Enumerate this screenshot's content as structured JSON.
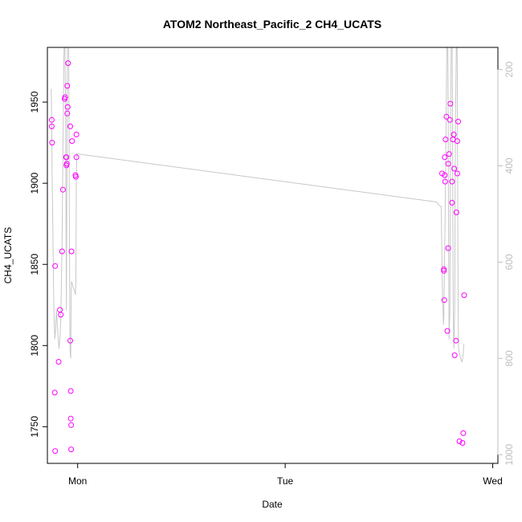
{
  "chart_data": {
    "type": "scatter",
    "title": "ATOM2 Northeast_Pacific_2 CH4_UCATS",
    "xlabel": "Date",
    "ylabel": "CH4_UCATS",
    "x_ticks": [
      "Mon",
      "Tue",
      "Wed"
    ],
    "x_tick_values": [
      0,
      24,
      48
    ],
    "xlim": [
      -3.5,
      48.6
    ],
    "y_ticks": [
      1750,
      1800,
      1850,
      1900,
      1950
    ],
    "ylim": [
      1727.4,
      1983.7
    ],
    "y2_ticks": [
      200,
      400,
      600,
      800,
      1000
    ],
    "y2lim": [
      1018,
      154
    ],
    "y2_reversed": true,
    "point_color": "#ff00ff",
    "line_color": "#c8c8c8",
    "series": [
      {
        "type": "scatter",
        "values": [
          [
            -3.0,
            1939
          ],
          [
            -3.0,
            1935
          ],
          [
            -2.95,
            1925
          ],
          [
            -2.65,
            1771
          ],
          [
            -2.6,
            1735
          ],
          [
            -2.6,
            1849
          ],
          [
            -2.2,
            1790
          ],
          [
            -2.05,
            1822
          ],
          [
            -1.95,
            1819
          ],
          [
            -1.8,
            1858
          ],
          [
            -1.7,
            1896
          ],
          [
            -1.5,
            1952
          ],
          [
            -1.45,
            1953
          ],
          [
            -1.35,
            1916
          ],
          [
            -1.3,
            1911
          ],
          [
            -1.3,
            1916
          ],
          [
            -1.25,
            1912
          ],
          [
            -1.2,
            1960
          ],
          [
            -1.2,
            1943
          ],
          [
            -1.15,
            1947
          ],
          [
            -1.1,
            1974
          ],
          [
            -0.85,
            1935
          ],
          [
            -0.85,
            1803
          ],
          [
            -0.8,
            1772
          ],
          [
            -0.8,
            1755
          ],
          [
            -0.75,
            1751
          ],
          [
            -0.75,
            1736
          ],
          [
            -0.7,
            1858
          ],
          [
            -0.65,
            1926
          ],
          [
            -0.25,
            1905
          ],
          [
            -0.2,
            1904
          ],
          [
            -0.15,
            1916
          ],
          [
            -0.15,
            1930
          ],
          [
            42.15,
            1906
          ],
          [
            42.35,
            1847
          ],
          [
            42.35,
            1846
          ],
          [
            42.4,
            1828
          ],
          [
            42.45,
            1916
          ],
          [
            42.45,
            1905
          ],
          [
            42.5,
            1901
          ],
          [
            42.55,
            1927
          ],
          [
            42.65,
            1941
          ],
          [
            42.75,
            1809
          ],
          [
            42.85,
            1860
          ],
          [
            42.85,
            1912
          ],
          [
            42.95,
            1918
          ],
          [
            43.05,
            1939
          ],
          [
            43.1,
            1949
          ],
          [
            43.3,
            1888
          ],
          [
            43.3,
            1901
          ],
          [
            43.4,
            1927
          ],
          [
            43.5,
            1930
          ],
          [
            43.55,
            1909
          ],
          [
            43.6,
            1794
          ],
          [
            43.75,
            1803
          ],
          [
            43.8,
            1882
          ],
          [
            43.9,
            1906
          ],
          [
            43.9,
            1926
          ],
          [
            44.0,
            1938
          ],
          [
            44.15,
            1741
          ],
          [
            44.5,
            1740
          ],
          [
            44.6,
            1746
          ],
          [
            44.7,
            1831
          ]
        ]
      },
      {
        "type": "line",
        "axis": "right",
        "values": [
          [
            -3.05,
            240
          ],
          [
            -3.0,
            310
          ],
          [
            -2.95,
            420
          ],
          [
            -2.85,
            560
          ],
          [
            -2.75,
            700
          ],
          [
            -2.65,
            760
          ],
          [
            -2.55,
            740
          ],
          [
            -2.45,
            700
          ],
          [
            -2.35,
            730
          ],
          [
            -2.25,
            760
          ],
          [
            -2.15,
            780
          ],
          [
            -2.05,
            760
          ],
          [
            -1.95,
            720
          ],
          [
            -1.8,
            560
          ],
          [
            -1.7,
            360
          ],
          [
            -1.6,
            180
          ],
          [
            -1.5,
            110
          ],
          [
            -1.4,
            260
          ],
          [
            -1.35,
            520
          ],
          [
            -1.3,
            700
          ],
          [
            -1.25,
            460
          ],
          [
            -1.2,
            200
          ],
          [
            -1.15,
            90
          ],
          [
            -1.05,
            110
          ],
          [
            -1.0,
            300
          ],
          [
            -0.95,
            560
          ],
          [
            -0.9,
            760
          ],
          [
            -0.85,
            790
          ],
          [
            -0.8,
            800
          ],
          [
            -0.75,
            660
          ],
          [
            -0.7,
            640
          ],
          [
            -0.55,
            650
          ],
          [
            -0.45,
            655
          ],
          [
            -0.35,
            660
          ],
          [
            -0.25,
            668
          ],
          [
            -0.2,
            640
          ],
          [
            -0.15,
            420
          ],
          [
            -0.1,
            375
          ],
          [
            41.5,
            475
          ],
          [
            41.8,
            482
          ],
          [
            42.05,
            485
          ],
          [
            42.1,
            560
          ],
          [
            42.2,
            670
          ],
          [
            42.3,
            730
          ],
          [
            42.35,
            710
          ],
          [
            42.4,
            650
          ],
          [
            42.5,
            500
          ],
          [
            42.6,
            320
          ],
          [
            42.7,
            150
          ],
          [
            42.8,
            110
          ],
          [
            42.85,
            300
          ],
          [
            42.9,
            560
          ],
          [
            42.95,
            760
          ],
          [
            43.05,
            700
          ],
          [
            43.1,
            400
          ],
          [
            43.2,
            130
          ],
          [
            43.3,
            100
          ],
          [
            43.35,
            300
          ],
          [
            43.4,
            560
          ],
          [
            43.45,
            720
          ],
          [
            43.5,
            780
          ],
          [
            43.6,
            700
          ],
          [
            43.65,
            500
          ],
          [
            43.7,
            300
          ],
          [
            43.8,
            140
          ],
          [
            43.85,
            110
          ],
          [
            43.9,
            200
          ],
          [
            43.95,
            450
          ],
          [
            44.0,
            700
          ],
          [
            44.05,
            780
          ],
          [
            44.15,
            790
          ],
          [
            44.3,
            800
          ],
          [
            44.45,
            808
          ],
          [
            44.6,
            790
          ],
          [
            44.65,
            770
          ]
        ]
      }
    ]
  }
}
